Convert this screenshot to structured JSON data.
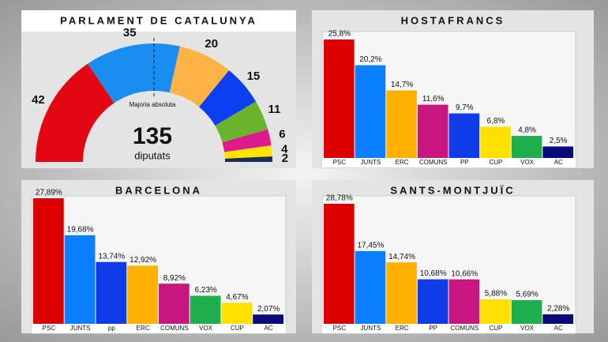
{
  "chart_data": [
    {
      "type": "parliament",
      "title": "PARLAMENT DE CATALUNYA",
      "values": [
        42,
        35,
        20,
        15,
        11,
        6,
        4,
        2
      ],
      "colors": [
        "#e30613",
        "#1a8ef0",
        "#ffb347",
        "#0b3ff0",
        "#6ab42d",
        "#e01a8c",
        "#ffe600",
        "#1c2b5a"
      ],
      "total": 135,
      "total_label": "diputats",
      "annotation": "Majoria absoluta"
    },
    {
      "type": "bar",
      "title": "HOSTAFRANCS",
      "categories": [
        "PSC",
        "JUNTS",
        "ERC",
        "COMUNS",
        "PP",
        "CUP",
        "VOX",
        "AC"
      ],
      "values": [
        25.8,
        20.2,
        14.7,
        11.6,
        9.7,
        6.8,
        4.8,
        2.5
      ],
      "value_labels": [
        "25,8%",
        "20,2%",
        "14,7%",
        "11,6%",
        "9,7%",
        "6,8%",
        "4,8%",
        "2,5%"
      ],
      "colors": [
        "#dd0000",
        "#0a7fff",
        "#ffb000",
        "#c8157f",
        "#0f3be8",
        "#ffe000",
        "#1fae4c",
        "#0a0a7a"
      ]
    },
    {
      "type": "bar",
      "title": "BARCELONA",
      "categories": [
        "PSC",
        "JUNTS",
        "pp",
        "ERC",
        "COMUNS",
        "VOX",
        "CUP",
        "AC"
      ],
      "values": [
        27.89,
        19.68,
        13.74,
        12.92,
        8.92,
        6.23,
        4.67,
        2.07
      ],
      "value_labels": [
        "27,89%",
        "19,68%",
        "13,74%",
        "12,92%",
        "8,92%",
        "6,23%",
        "4,67%",
        "2,07%"
      ],
      "colors": [
        "#dd0000",
        "#0a7fff",
        "#0f3be8",
        "#ffb000",
        "#c8157f",
        "#1fae4c",
        "#ffe000",
        "#0a0a7a"
      ]
    },
    {
      "type": "bar",
      "title": "SANTS-MONTJUÏC",
      "categories": [
        "PSC",
        "JUNTS",
        "ERC",
        "PP",
        "COMUNS",
        "CUP",
        "VOX",
        "AC"
      ],
      "values": [
        28.78,
        17.45,
        14.74,
        10.68,
        10.66,
        5.88,
        5.69,
        2.28
      ],
      "value_labels": [
        "28,78%",
        "17,45%",
        "14,74%",
        "10,68%",
        "10,66%",
        "5,88%",
        "5,69%",
        "2,28%"
      ],
      "colors": [
        "#dd0000",
        "#0a7fff",
        "#ffb000",
        "#0f3be8",
        "#c8157f",
        "#ffe000",
        "#1fae4c",
        "#0a0a7a"
      ]
    }
  ]
}
